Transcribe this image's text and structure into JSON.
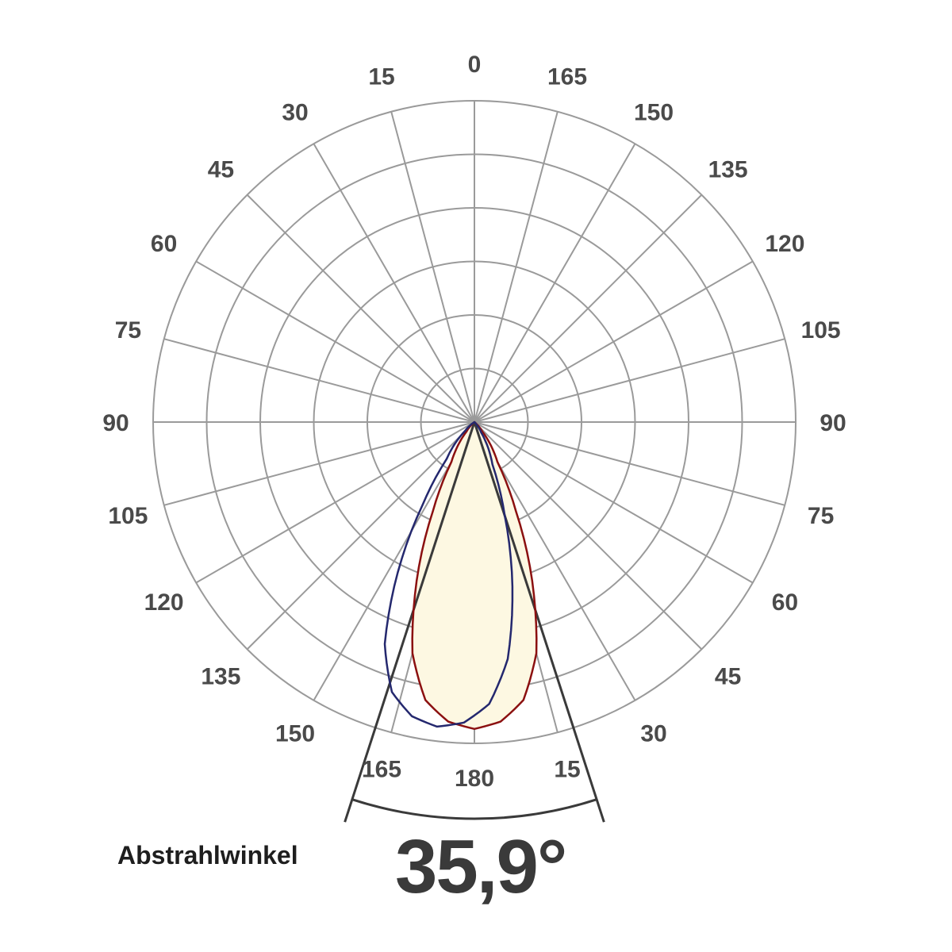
{
  "chart_data": {
    "type": "polar",
    "angle_ticks_left": [
      "180",
      "165",
      "150",
      "135",
      "120",
      "105",
      "90",
      "75",
      "60",
      "45",
      "30",
      "15",
      "0"
    ],
    "angle_ticks_right": [
      "165",
      "150",
      "135",
      "120",
      "105",
      "90",
      "75",
      "60",
      "45",
      "30",
      "15"
    ],
    "angle_tick_values": [
      0,
      15,
      30,
      45,
      60,
      75,
      90,
      105,
      120,
      135,
      150,
      165,
      180
    ],
    "rings": 6,
    "beam_angle_label": "Abstrahlwinkel",
    "beam_angle_value": "35,9°",
    "beam_angle_deg": 35.9,
    "series": [
      {
        "color": "#8b1010",
        "points": [
          [
            0,
            1.0
          ],
          [
            5,
            0.98
          ],
          [
            10,
            0.92
          ],
          [
            15,
            0.78
          ],
          [
            20,
            0.55
          ],
          [
            25,
            0.32
          ],
          [
            30,
            0.15
          ],
          [
            40,
            0.04
          ],
          [
            50,
            0.0
          ]
        ]
      },
      {
        "color": "#24286e",
        "shift_deg": -7,
        "points": [
          [
            0,
            1.0
          ],
          [
            5,
            0.98
          ],
          [
            10,
            0.92
          ],
          [
            15,
            0.78
          ],
          [
            20,
            0.55
          ],
          [
            25,
            0.32
          ],
          [
            30,
            0.15
          ],
          [
            40,
            0.04
          ],
          [
            50,
            0.0
          ]
        ]
      }
    ],
    "fill_color": "#fdf8e2",
    "grid_color": "#9a9a9a",
    "cone_color": "#3a3a3a"
  }
}
